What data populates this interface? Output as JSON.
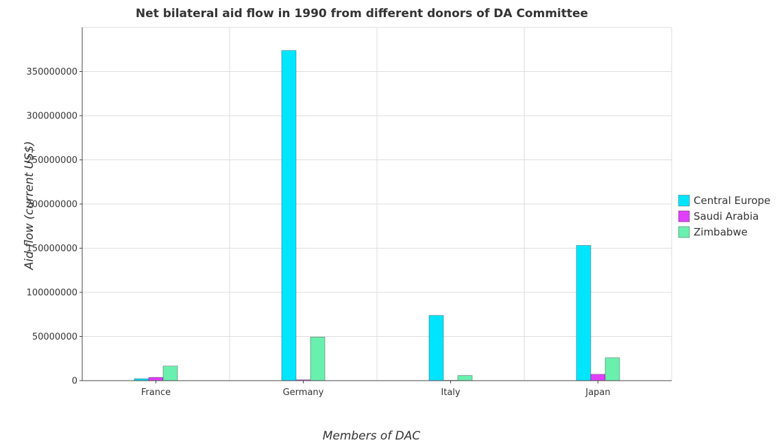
{
  "chart_data": {
    "type": "bar",
    "title": "Net bilateral aid flow in 1990 from different donors of DA Committee",
    "xlabel": "Members of DAC",
    "ylabel": "Aid flow (current US$)",
    "categories": [
      "France",
      "Germany",
      "Italy",
      "Japan"
    ],
    "ylim": [
      0,
      400000000
    ],
    "yticks": [
      0,
      50000000,
      100000000,
      150000000,
      200000000,
      250000000,
      300000000,
      350000000
    ],
    "ytick_labels": [
      "0",
      "50000000",
      "100000000",
      "150000000",
      "200000000",
      "250000000",
      "300000000",
      "350000000"
    ],
    "grid": true,
    "legend_position": "right",
    "series": [
      {
        "name": "Central Europe",
        "color": "#00e5ff",
        "values": [
          2200000,
          373800000,
          73800000,
          153100000
        ]
      },
      {
        "name": "Saudi Arabia",
        "color": "#e040fb",
        "values": [
          3700000,
          900000,
          400000,
          7200000
        ]
      },
      {
        "name": "Zimbabwe",
        "color": "#69f0ae",
        "values": [
          16500000,
          49300000,
          5800000,
          25900000
        ]
      }
    ]
  }
}
